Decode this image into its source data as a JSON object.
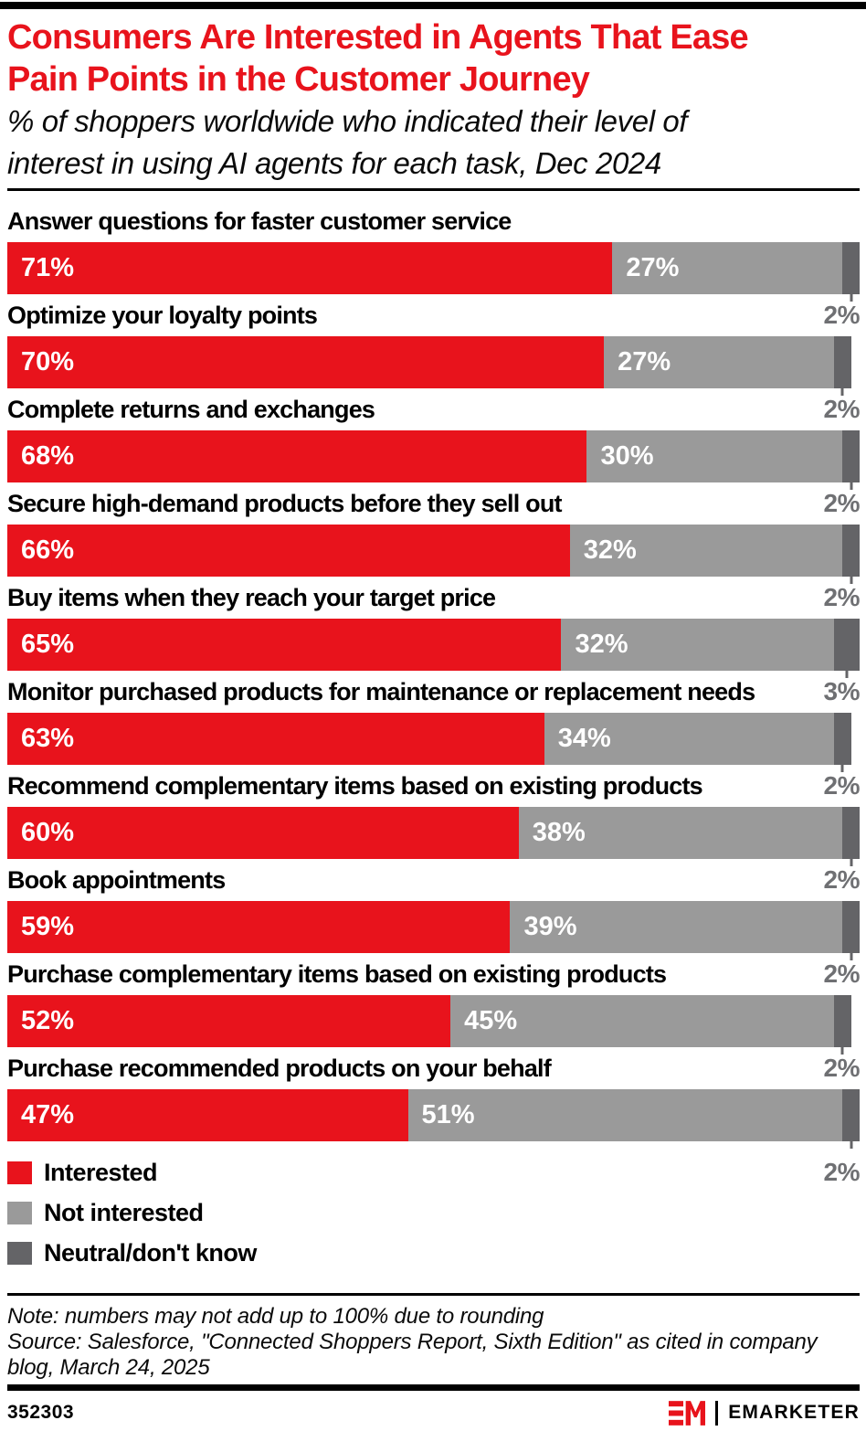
{
  "header": {
    "title_lines": [
      "Consumers Are Interested in Agents That Ease",
      "Pain Points in the Customer Journey"
    ],
    "subtitle_lines": [
      "% of shoppers worldwide who indicated their level of",
      "interest in using AI agents for each task, Dec 2024"
    ]
  },
  "colors": {
    "accent_red": "#e8131c",
    "gray": "#9a9a9a",
    "dark_gray": "#646467",
    "neutral_text": "#6f7073",
    "black": "#000000"
  },
  "chart_data": {
    "type": "bar",
    "orientation": "horizontal",
    "stacked": true,
    "unit": "%",
    "xlim": [
      0,
      100
    ],
    "grid": false,
    "legend_position": "bottom-left",
    "value_labels": "Interested and Not interested labeled inside segments; Neutral/don't know labeled below bar right with tick mark",
    "categories": [
      "Answer questions for faster customer service",
      "Optimize your loyalty points",
      "Complete returns and exchanges",
      "Secure high-demand products before they sell out",
      "Buy items when they reach your target price",
      "Monitor purchased products for maintenance or replacement needs",
      "Recommend complementary items based on existing products",
      "Book appointments",
      "Purchase complementary items based on existing products",
      "Purchase recommended products on your behalf"
    ],
    "series": [
      {
        "name": "Interested",
        "color": "#e8131c",
        "values": [
          71,
          70,
          68,
          66,
          65,
          63,
          60,
          59,
          52,
          47
        ]
      },
      {
        "name": "Not interested",
        "color": "#9a9a9a",
        "values": [
          27,
          27,
          30,
          32,
          32,
          34,
          38,
          39,
          45,
          51
        ]
      },
      {
        "name": "Neutral/don't know",
        "color": "#646467",
        "values": [
          2,
          2,
          2,
          2,
          3,
          2,
          2,
          2,
          2,
          2
        ]
      }
    ]
  },
  "footer": {
    "note": "Note: numbers may not add up to 100% due to rounding",
    "source": "Source: Salesforce, \"Connected Shoppers Report, Sixth Edition\" as cited in company blog, March 24, 2025",
    "chart_id": "352303",
    "brand_name": "EMARKETER"
  }
}
